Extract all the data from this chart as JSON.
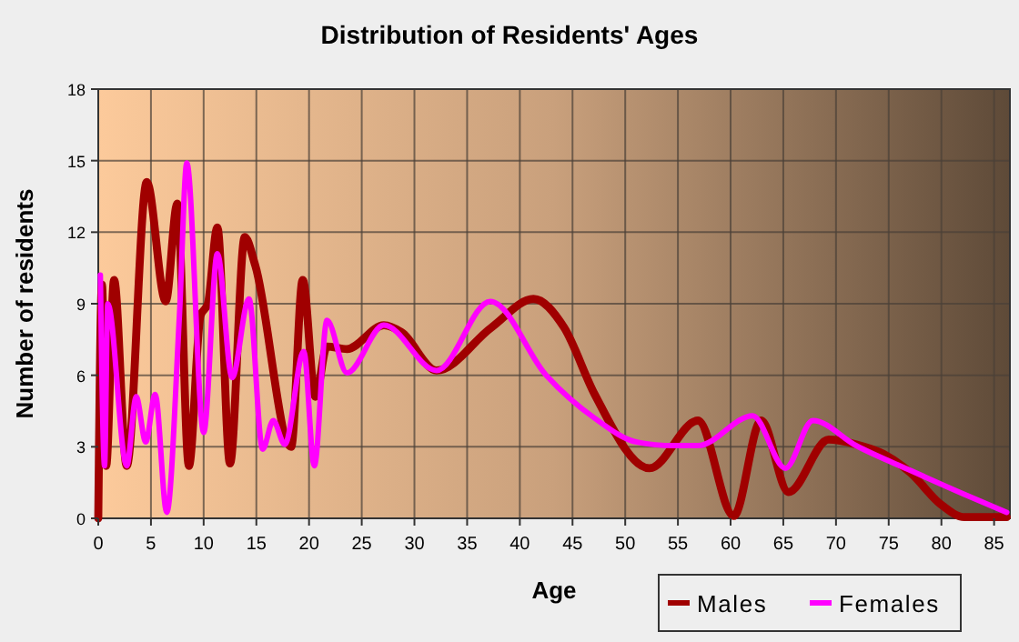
{
  "chart_data": {
    "type": "line",
    "title": "Distribution of Residents' Ages",
    "xlabel": "Age",
    "ylabel": "Number of residents",
    "xlim": [
      0,
      86.5
    ],
    "xticks": [
      0,
      5,
      10,
      15,
      20,
      25,
      30,
      35,
      40,
      45,
      50,
      55,
      60,
      65,
      70,
      75,
      80,
      85
    ],
    "ylim": [
      0,
      18
    ],
    "yticks": [
      0,
      3,
      6,
      9,
      12,
      15,
      18
    ],
    "grid": true,
    "legend": "bottom right",
    "marker": "none",
    "line_style": "solid",
    "series": [
      {
        "name": "Males",
        "color": "#a00000",
        "x": [
          0,
          0.35,
          0.75,
          1.5,
          2.7,
          4.6,
          6.4,
          7.5,
          8.6,
          9.7,
          10.4,
          11.3,
          12.5,
          13.9,
          14.9,
          18.3,
          19.4,
          20.6,
          21.7,
          23.6,
          27.1,
          28.8,
          32.1,
          37.3,
          41.3,
          44.2,
          47.1,
          52.3,
          56.9,
          60.3,
          62.9,
          65.5,
          69.3,
          71.9,
          74.5,
          77.1,
          79.9,
          82.2,
          86.2
        ],
        "values": [
          0,
          9.8,
          2.2,
          10,
          2.2,
          14.1,
          9.1,
          13.2,
          2.2,
          8.5,
          9,
          12.2,
          2.3,
          11.8,
          10.6,
          3,
          10,
          5.1,
          7.2,
          7.1,
          8.1,
          7.8,
          6.2,
          8,
          9.2,
          8,
          5.2,
          2.1,
          4.1,
          0.1,
          4.1,
          1.1,
          3.3,
          3.1,
          2.7,
          1.9,
          0.6,
          0.05,
          0.05
        ]
      },
      {
        "name": "Females",
        "color": "#ff00ff",
        "x": [
          0.2,
          0.6,
          0.9,
          2.7,
          3.6,
          4.5,
          5.4,
          6.5,
          7.7,
          8.4,
          10,
          11.3,
          12.7,
          14.3,
          15.6,
          16.6,
          17.7,
          19.5,
          20.5,
          21.7,
          23.6,
          27.1,
          32.1,
          37.2,
          42.5,
          47.1,
          51.1,
          54.6,
          56.9,
          62.1,
          65.2,
          67.8,
          71.9,
          77.1,
          82.2,
          86.2
        ],
        "values": [
          10.2,
          2.2,
          9,
          2.2,
          5.1,
          3.2,
          5.2,
          0.25,
          8.5,
          14.9,
          3.6,
          11.1,
          5.9,
          9.2,
          2.9,
          4.1,
          3.1,
          7,
          2.2,
          8.3,
          6.1,
          8.1,
          6.2,
          9.1,
          6,
          4.2,
          3.2,
          3.05,
          3.05,
          4.3,
          2.1,
          4.1,
          3.05,
          2,
          1,
          0.25
        ]
      }
    ]
  }
}
